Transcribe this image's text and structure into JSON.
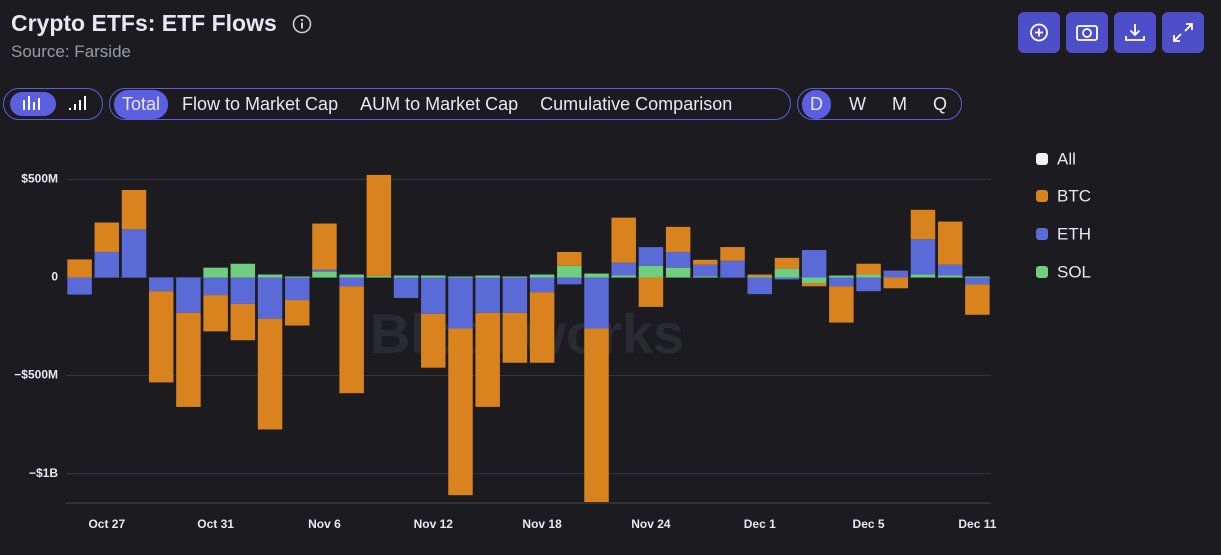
{
  "header": {
    "title": "Crypto ETFs: ETF Flows",
    "source": "Source: Farside"
  },
  "ui": {
    "tabs": [
      "Total",
      "Flow to Market Cap",
      "AUM to Market Cap",
      "Cumulative Comparison"
    ],
    "periods": [
      "D",
      "W",
      "M",
      "Q"
    ],
    "watermark": "Blockworks"
  },
  "chart_data": {
    "type": "bar",
    "stacked": true,
    "all_label": "All",
    "categories": [
      null,
      "Oct 27",
      null,
      null,
      null,
      "Oct 31",
      null,
      null,
      null,
      "Nov 6",
      null,
      null,
      null,
      "Nov 12",
      null,
      null,
      null,
      "Nov 18",
      null,
      null,
      null,
      "Nov 24",
      null,
      null,
      null,
      "Dec 1",
      null,
      null,
      null,
      "Dec 5",
      null,
      null,
      null,
      "Dec 11"
    ],
    "series": [
      {
        "name": "BTC",
        "color": "#d9831f",
        "values": [
          92,
          150,
          200,
          -465,
          -480,
          -185,
          -185,
          -565,
          -130,
          235,
          -545,
          515,
          0,
          -275,
          -850,
          -480,
          -255,
          -360,
          70,
          -885,
          230,
          -150,
          128,
          25,
          70,
          10,
          55,
          -15,
          -185,
          55,
          -55,
          150,
          220,
          -155
        ]
      },
      {
        "name": "ETH",
        "color": "#5a6ad6",
        "values": [
          -87,
          130,
          246,
          -70,
          -180,
          -90,
          -135,
          -210,
          -115,
          10,
          -45,
          0,
          -105,
          -185,
          -260,
          -180,
          -180,
          -75,
          -35,
          -260,
          65,
          95,
          80,
          60,
          85,
          -85,
          -10,
          140,
          -45,
          -70,
          35,
          180,
          55,
          -35
        ]
      },
      {
        "name": "SOL",
        "color": "#6fcf7d",
        "values": [
          0,
          0,
          0,
          0,
          0,
          50,
          70,
          15,
          5,
          30,
          15,
          8,
          10,
          10,
          5,
          10,
          5,
          15,
          60,
          20,
          10,
          60,
          50,
          5,
          0,
          5,
          45,
          -30,
          10,
          15,
          0,
          15,
          10,
          5
        ]
      }
    ],
    "ylim": [
      -1150,
      650
    ],
    "yticks": [
      {
        "value": 500,
        "label": "$500M"
      },
      0,
      {
        "value": -500,
        "label": "−$500M"
      },
      {
        "value": -1000,
        "label": "−$1B"
      }
    ],
    "grid": true,
    "legend": "right"
  }
}
